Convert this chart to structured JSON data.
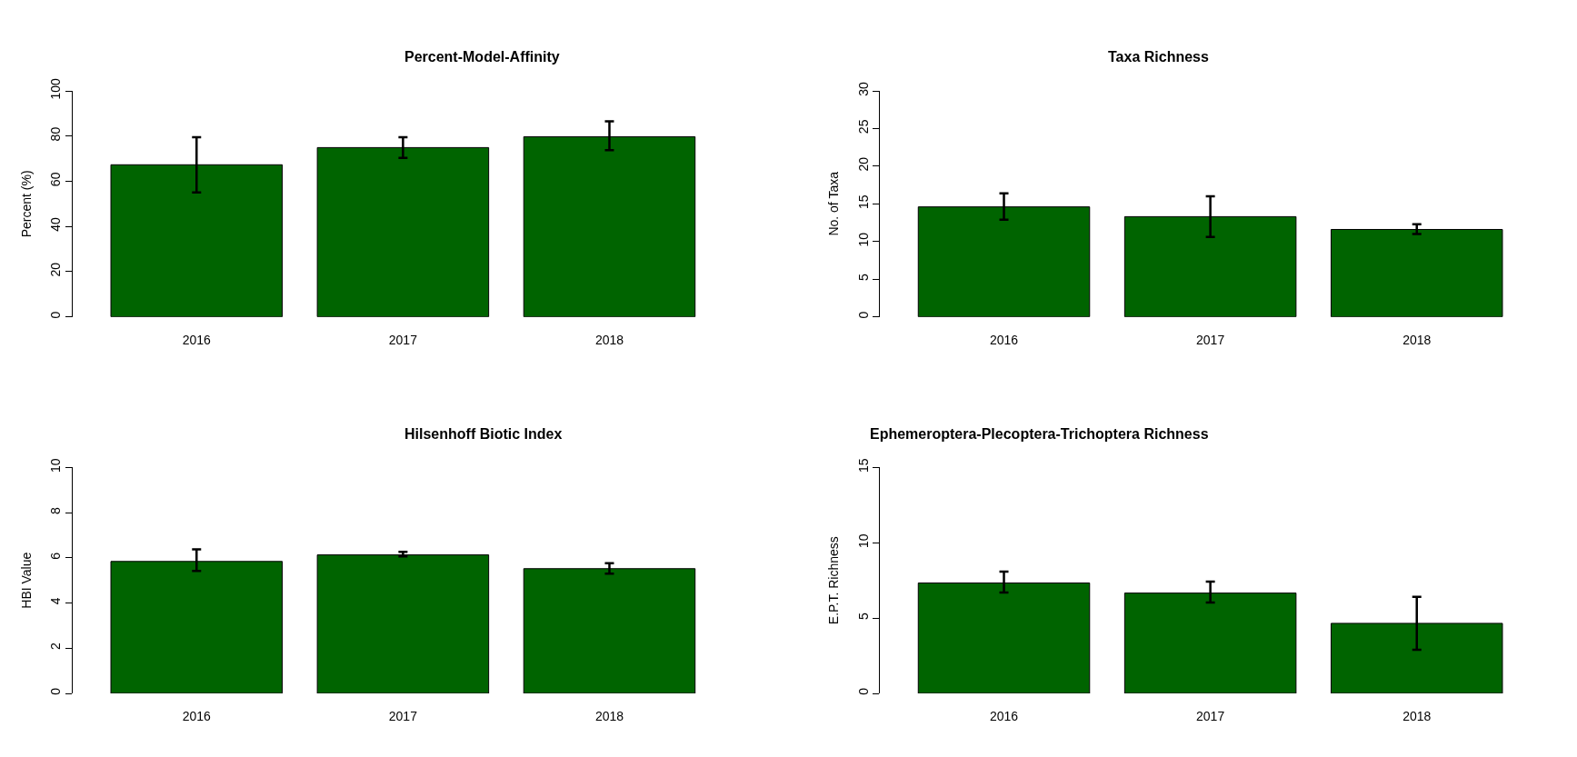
{
  "chart_data": [
    {
      "type": "bar",
      "title": "Percent-Model-Affinity",
      "ylabel": "Percent (%)",
      "categories": [
        "2016",
        "2017",
        "2018"
      ],
      "values": [
        67.3,
        74.9,
        79.7
      ],
      "color": "#006400",
      "errors": [
        [
          55.1,
          79.5
        ],
        [
          70.3,
          79.5
        ],
        [
          73.8,
          86.5
        ]
      ],
      "ylim": [
        0,
        100
      ],
      "yticks": [
        0,
        20,
        40,
        60,
        80,
        100
      ]
    },
    {
      "type": "bar",
      "title": "Taxa Richness",
      "ylabel": "No. of Taxa",
      "categories": [
        "2016",
        "2017",
        "2018"
      ],
      "values": [
        14.6,
        13.3,
        11.6
      ],
      "color": "#006400",
      "errors": [
        [
          12.9,
          16.4
        ],
        [
          10.6,
          16.0
        ],
        [
          11.0,
          12.3
        ]
      ],
      "ylim": [
        0,
        30
      ],
      "yticks": [
        0,
        5,
        10,
        15,
        20,
        25,
        30
      ]
    },
    {
      "type": "bar",
      "title": "Hilsenhoff Biotic Index",
      "ylabel": "HBI Value",
      "categories": [
        "2016",
        "2017",
        "2018"
      ],
      "values": [
        5.84,
        6.13,
        5.52
      ],
      "color": "#006400",
      "errors": [
        [
          5.42,
          6.38
        ],
        [
          6.06,
          6.26
        ],
        [
          5.3,
          5.76
        ]
      ],
      "ylim": [
        0,
        10
      ],
      "yticks": [
        0,
        2,
        4,
        6,
        8,
        10
      ]
    },
    {
      "type": "bar",
      "title": "Ephemeroptera-Plecoptera-Trichoptera Richness",
      "ylabel": "E.P.T. Richness",
      "categories": [
        "2016",
        "2017",
        "2018"
      ],
      "values": [
        7.33,
        6.66,
        4.65
      ],
      "color": "#006400",
      "errors": [
        [
          6.7,
          8.09
        ],
        [
          6.03,
          7.42
        ],
        [
          2.89,
          6.41
        ]
      ],
      "ylim": [
        0,
        15
      ],
      "yticks": [
        0,
        5,
        10,
        15
      ]
    }
  ]
}
